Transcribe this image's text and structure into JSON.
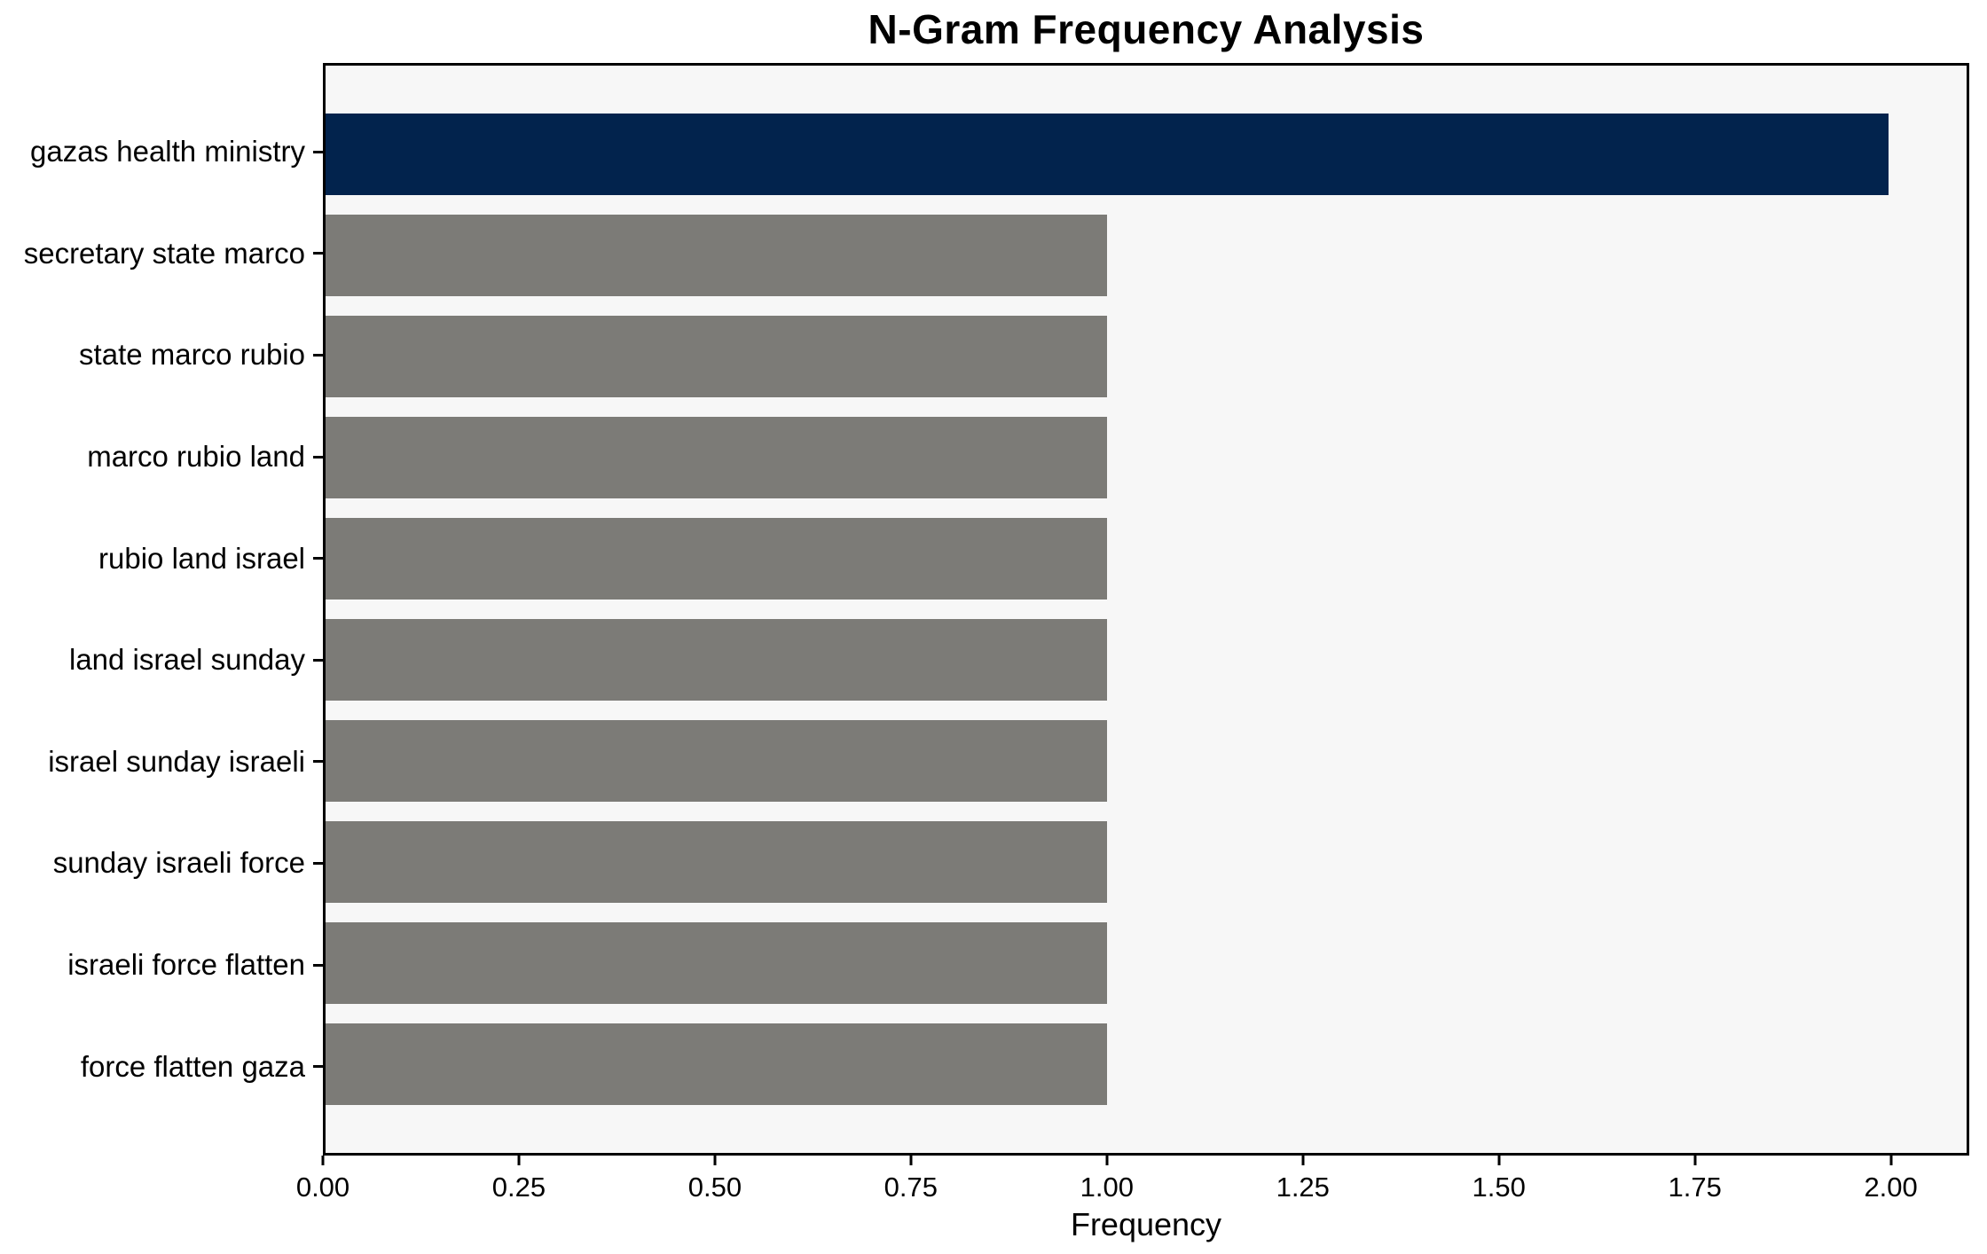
{
  "chart_data": {
    "type": "bar",
    "orientation": "horizontal",
    "title": "N-Gram Frequency Analysis",
    "xlabel": "Frequency",
    "categories": [
      "gazas health ministry",
      "secretary state marco",
      "state marco rubio",
      "marco rubio land",
      "rubio land israel",
      "land israel sunday",
      "israel sunday israeli",
      "sunday israeli force",
      "israeli force flatten",
      "force flatten gaza"
    ],
    "values": [
      2,
      1,
      1,
      1,
      1,
      1,
      1,
      1,
      1,
      1
    ],
    "bar_colors": [
      "#02234d",
      "#7c7b77",
      "#7c7b77",
      "#7c7b77",
      "#7c7b77",
      "#7c7b77",
      "#7c7b77",
      "#7c7b77",
      "#7c7b77",
      "#7c7b77"
    ],
    "xlim": [
      0,
      2.1
    ],
    "xticks": [
      0,
      0.25,
      0.5,
      0.75,
      1.0,
      1.25,
      1.5,
      1.75,
      2.0
    ],
    "xtick_labels": [
      "0.00",
      "0.25",
      "0.50",
      "0.75",
      "1.00",
      "1.25",
      "1.50",
      "1.75",
      "2.00"
    ],
    "grid": false,
    "legend": false,
    "plot_background": "#f7f7f7",
    "figure_background": "#ffffff",
    "spine_color": "#000000"
  }
}
